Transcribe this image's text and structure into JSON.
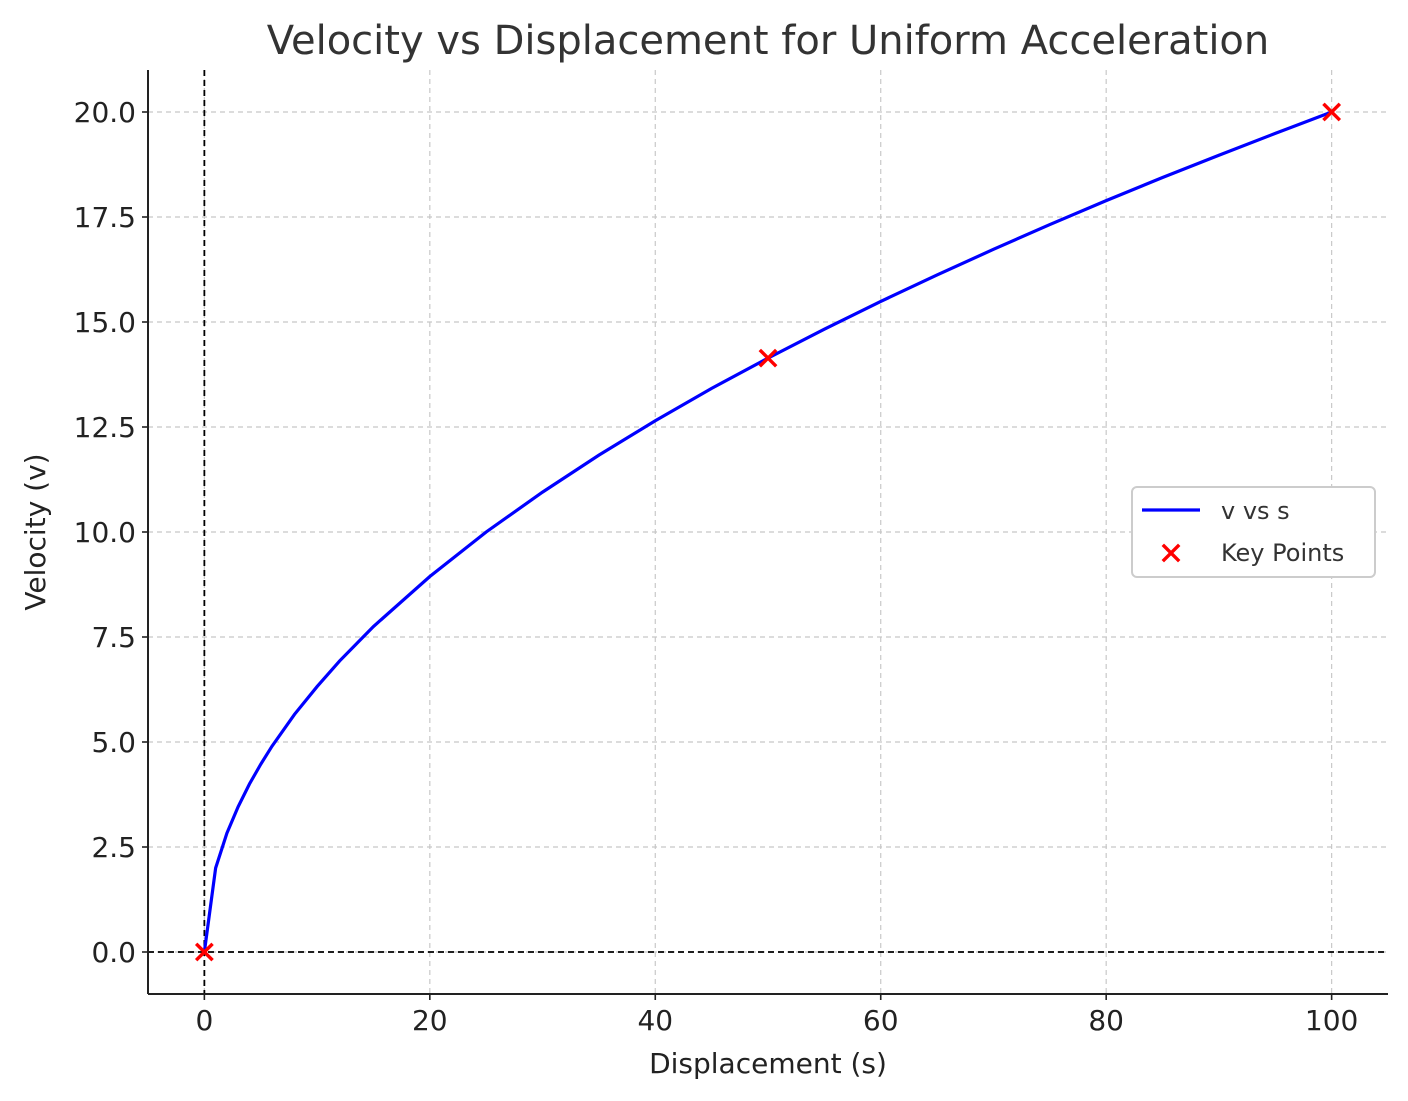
{
  "chart_data": {
    "type": "line",
    "title": "Velocity vs Displacement for Uniform Acceleration",
    "xlabel": "Displacement (s)",
    "ylabel": "Velocity (v)",
    "xlim": [
      -5,
      105
    ],
    "ylim": [
      -1,
      21
    ],
    "xticks": [
      0,
      20,
      40,
      60,
      80,
      100
    ],
    "yticks": [
      0.0,
      2.5,
      5.0,
      7.5,
      10.0,
      12.5,
      15.0,
      17.5,
      20.0
    ],
    "grid": true,
    "legend_position": "center-right",
    "reference_lines": [
      {
        "orientation": "horizontal",
        "value": 0,
        "style": "dashed",
        "color": "#000000"
      },
      {
        "orientation": "vertical",
        "value": 0,
        "style": "dashed",
        "color": "#000000"
      }
    ],
    "series": [
      {
        "name": "v vs s",
        "kind": "line",
        "color": "#0000ff",
        "x": [
          0,
          1,
          2,
          3,
          4,
          5,
          6,
          8,
          10,
          12,
          15,
          20,
          25,
          30,
          35,
          40,
          45,
          50,
          55,
          60,
          65,
          70,
          75,
          80,
          85,
          90,
          95,
          100
        ],
        "y": [
          0,
          2.0,
          2.83,
          3.46,
          4.0,
          4.47,
          4.9,
          5.66,
          6.32,
          6.93,
          7.75,
          8.94,
          10.0,
          10.95,
          11.83,
          12.65,
          13.42,
          14.14,
          14.83,
          15.49,
          16.12,
          16.73,
          17.32,
          17.89,
          18.44,
          18.97,
          19.49,
          20.0
        ]
      },
      {
        "name": "Key Points",
        "kind": "scatter",
        "marker": "x",
        "color": "#ff0000",
        "x": [
          0,
          50,
          100
        ],
        "y": [
          0,
          14.14,
          20.0
        ]
      }
    ]
  }
}
